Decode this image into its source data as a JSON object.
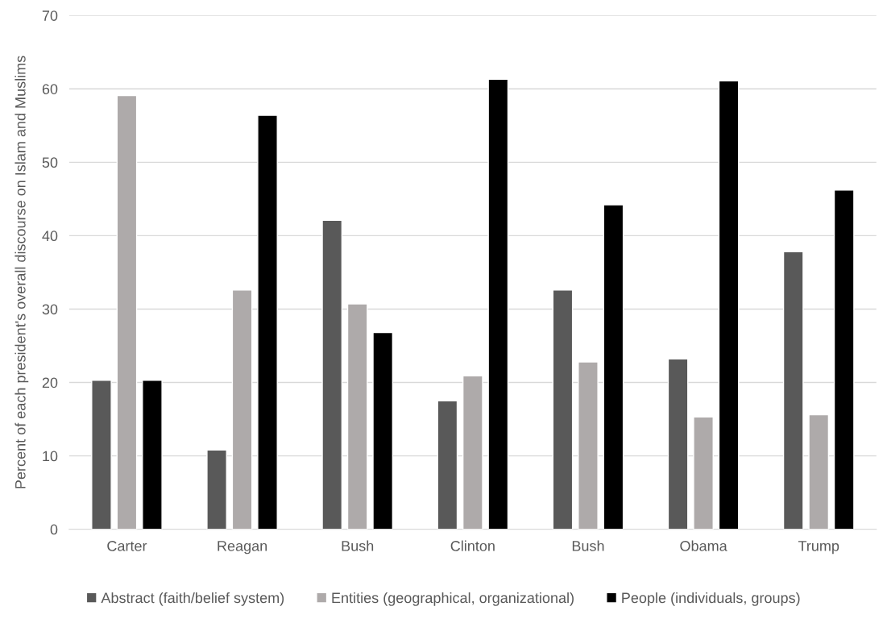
{
  "chart_data": {
    "type": "bar",
    "ylabel": "Percent of each president's overall discourse on Islam and Muslims",
    "categories": [
      "Carter",
      "Reagan",
      "Bush",
      "Clinton",
      "Bush",
      "Obama",
      "Trump"
    ],
    "series": [
      {
        "name": "Abstract (faith/belief system)",
        "color": "#595959",
        "values": [
          20.3,
          10.8,
          42.1,
          17.5,
          32.6,
          23.2,
          37.8
        ]
      },
      {
        "name": "Entities (geographical, organizational)",
        "color": "#aeaaaa",
        "values": [
          59.1,
          32.6,
          30.7,
          20.9,
          22.8,
          15.3,
          15.6
        ]
      },
      {
        "name": "People (individuals, groups)",
        "color": "#000000",
        "values": [
          20.3,
          56.4,
          26.8,
          61.3,
          44.2,
          61.1,
          46.2
        ]
      }
    ],
    "ylim": [
      0,
      70
    ],
    "yticks": [
      0,
      10,
      20,
      30,
      40,
      50,
      60,
      70
    ],
    "grid": "y",
    "legend": "bottom"
  }
}
